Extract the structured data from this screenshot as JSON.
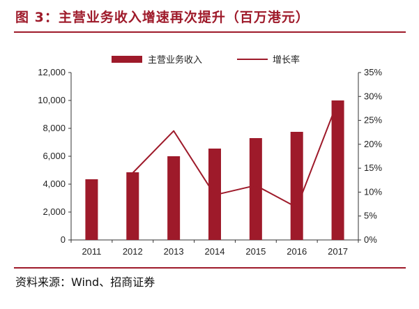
{
  "header": {
    "title": "图 3：主营业务收入增速再次提升（百万港元）"
  },
  "footer": {
    "source": "资料来源：Wind、招商证券"
  },
  "chart_data": {
    "type": "bar",
    "categories": [
      "2011",
      "2012",
      "2013",
      "2014",
      "2015",
      "2016",
      "2017"
    ],
    "series": [
      {
        "name": "主营业务收入",
        "type": "bar",
        "axis": "left",
        "color": "#9e1a2a",
        "values": [
          4350,
          4850,
          6000,
          6550,
          7300,
          7750,
          10000
        ]
      },
      {
        "name": "增长率",
        "type": "line",
        "axis": "right",
        "color": "#9e1a2a",
        "values": [
          null,
          0.14,
          0.228,
          0.094,
          0.114,
          0.068,
          0.29
        ]
      }
    ],
    "y_left": {
      "min": 0,
      "max": 12000,
      "ticks": [
        0,
        2000,
        4000,
        6000,
        8000,
        10000,
        12000
      ],
      "tick_labels": [
        "0",
        "2,000",
        "4,000",
        "6,000",
        "8,000",
        "10,000",
        "12,000"
      ]
    },
    "y_right": {
      "min": 0,
      "max": 0.35,
      "ticks": [
        0,
        0.05,
        0.1,
        0.15,
        0.2,
        0.25,
        0.3,
        0.35
      ],
      "tick_labels": [
        "0%",
        "5%",
        "10%",
        "15%",
        "20%",
        "25%",
        "30%",
        "35%"
      ]
    },
    "legend_position": "top-center",
    "grid": false
  }
}
